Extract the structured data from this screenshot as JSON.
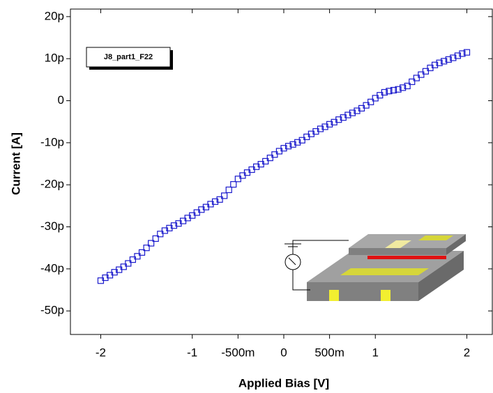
{
  "chart_data": {
    "type": "scatter",
    "xlabel": "Applied Bias [V]",
    "ylabel": "Current [A]",
    "xlim": [
      -2.331,
      2.278
    ],
    "ylim": [
      -5.56e-11,
      2.18e-11
    ],
    "xticks": [
      -2,
      -1,
      {
        "value": -0.5,
        "label": "-500m"
      },
      0,
      {
        "value": 0.5,
        "label": "500m"
      },
      1,
      2
    ],
    "yticks": [
      {
        "value": 2e-11,
        "label": "20p"
      },
      {
        "value": 1e-11,
        "label": "10p"
      },
      0,
      {
        "value": -1e-11,
        "label": "-10p"
      },
      {
        "value": -2e-11,
        "label": "-20p"
      },
      {
        "value": -3e-11,
        "label": "-30p"
      },
      {
        "value": -4e-11,
        "label": "-40p"
      },
      {
        "value": -5e-11,
        "label": "-50p"
      }
    ],
    "series": [
      {
        "name": "J8_part1_F22",
        "color": "#1a1acc",
        "x": [
          -2,
          -1.95,
          -1.9,
          -1.85,
          -1.8,
          -1.75,
          -1.7,
          -1.65,
          -1.6,
          -1.55,
          -1.5,
          -1.45,
          -1.4,
          -1.35,
          -1.3,
          -1.25,
          -1.2,
          -1.15,
          -1.1,
          -1.05,
          -1,
          -0.95,
          -0.9,
          -0.85,
          -0.8,
          -0.75,
          -0.7,
          -0.65,
          -0.6,
          -0.55,
          -0.5,
          -0.45,
          -0.4,
          -0.35,
          -0.3,
          -0.25,
          -0.2,
          -0.15,
          -0.1,
          -0.05,
          0,
          0.05,
          0.1,
          0.15,
          0.2,
          0.25,
          0.3,
          0.35,
          0.4,
          0.45,
          0.5,
          0.55,
          0.6,
          0.65,
          0.7,
          0.75,
          0.8,
          0.85,
          0.9,
          0.95,
          1,
          1.05,
          1.1,
          1.15,
          1.2,
          1.25,
          1.3,
          1.35,
          1.4,
          1.45,
          1.5,
          1.55,
          1.6,
          1.65,
          1.7,
          1.75,
          1.8,
          1.85,
          1.9,
          1.95,
          2
        ],
        "values": [
          -4.28e-11,
          -4.21e-11,
          -4.15e-11,
          -4.08e-11,
          -4.02e-11,
          -3.95e-11,
          -3.87e-11,
          -3.78e-11,
          -3.7e-11,
          -3.61e-11,
          -3.5e-11,
          -3.39e-11,
          -3.28e-11,
          -3.17e-11,
          -3.09e-11,
          -3.03e-11,
          -2.97e-11,
          -2.92e-11,
          -2.86e-11,
          -2.79e-11,
          -2.73e-11,
          -2.66e-11,
          -2.59e-11,
          -2.53e-11,
          -2.46e-11,
          -2.4e-11,
          -2.35e-11,
          -2.26e-11,
          -2.12e-11,
          -1.99e-11,
          -1.86e-11,
          -1.78e-11,
          -1.71e-11,
          -1.64e-11,
          -1.57e-11,
          -1.51e-11,
          -1.44e-11,
          -1.36e-11,
          -1.28e-11,
          -1.2e-11,
          -1.13e-11,
          -1.08e-11,
          -1.04e-11,
          -9.9e-12,
          -9.4e-12,
          -8.6e-12,
          -7.9e-12,
          -7.3e-12,
          -6.7e-12,
          -6.2e-12,
          -5.6e-12,
          -5.1e-12,
          -4.5e-12,
          -4e-12,
          -3.4e-12,
          -2.9e-12,
          -2.4e-12,
          -1.8e-12,
          -1.1e-12,
          -3e-13,
          6e-13,
          1.3e-12,
          2e-12,
          2.3e-12,
          2.5e-12,
          2.7e-12,
          3.1e-12,
          3.5e-12,
          4.5e-12,
          5.4e-12,
          6.2e-12,
          7e-12,
          7.8e-12,
          8.5e-12,
          9e-12,
          9.4e-12,
          9.8e-12,
          1.02e-11,
          1.07e-11,
          1.12e-11,
          1.15e-11
        ]
      }
    ]
  }
}
